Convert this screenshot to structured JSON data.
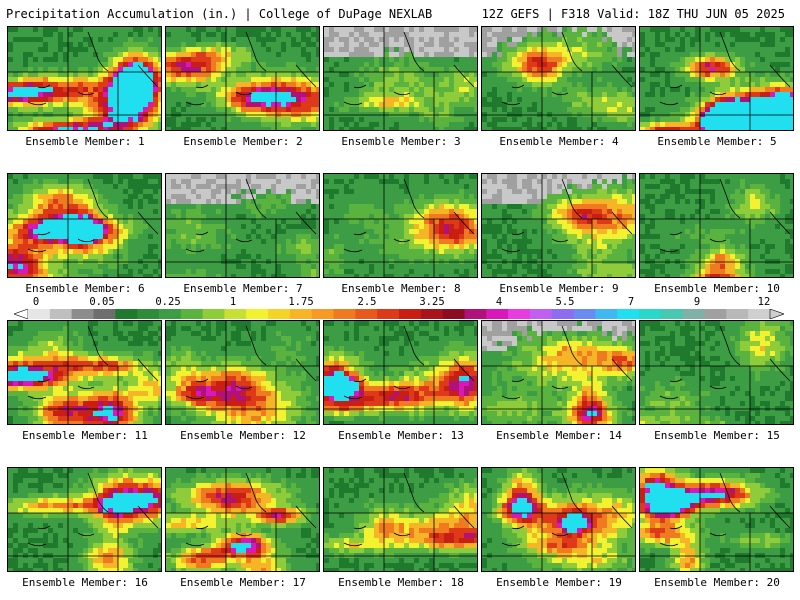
{
  "header": {
    "title": "Precipitation Accumulation (in.) | College of DuPage NEXLAB",
    "run_info": "12Z GEFS | F318 Valid: 18Z THU JUN 05 2025"
  },
  "members": [
    {
      "label": "Ensemble Member: 1",
      "intensity": 0.85
    },
    {
      "label": "Ensemble Member: 2",
      "intensity": 0.7
    },
    {
      "label": "Ensemble Member: 3",
      "intensity": 0.3
    },
    {
      "label": "Ensemble Member: 4",
      "intensity": 0.4
    },
    {
      "label": "Ensemble Member: 5",
      "intensity": 0.9
    },
    {
      "label": "Ensemble Member: 6",
      "intensity": 0.65
    },
    {
      "label": "Ensemble Member: 7",
      "intensity": 0.25
    },
    {
      "label": "Ensemble Member: 8",
      "intensity": 0.4
    },
    {
      "label": "Ensemble Member: 9",
      "intensity": 0.45
    },
    {
      "label": "Ensemble Member: 10",
      "intensity": 0.45
    },
    {
      "label": "Ensemble Member: 11",
      "intensity": 0.7
    },
    {
      "label": "Ensemble Member: 12",
      "intensity": 0.35
    },
    {
      "label": "Ensemble Member: 13",
      "intensity": 0.75
    },
    {
      "label": "Ensemble Member: 14",
      "intensity": 0.5
    },
    {
      "label": "Ensemble Member: 15",
      "intensity": 0.4
    },
    {
      "label": "Ensemble Member: 16",
      "intensity": 0.55
    },
    {
      "label": "Ensemble Member: 17",
      "intensity": 0.75
    },
    {
      "label": "Ensemble Member: 18",
      "intensity": 0.35
    },
    {
      "label": "Ensemble Member: 19",
      "intensity": 0.55
    },
    {
      "label": "Ensemble Member: 20",
      "intensity": 0.85
    }
  ],
  "colorbar": {
    "labels": [
      "0",
      "0.05",
      "0.25",
      "1",
      "1.75",
      "2.5",
      "3.25",
      "4",
      "5.5",
      "7",
      "9",
      "12"
    ],
    "colors": [
      "#e6e6e6",
      "#bfbfbf",
      "#8c8c8c",
      "#6e6e6e",
      "#1f7a2e",
      "#2e8b3a",
      "#3c9d44",
      "#5ab33f",
      "#8fcc3a",
      "#c8e036",
      "#f2f230",
      "#f5d42a",
      "#f5b526",
      "#f59a24",
      "#f07a20",
      "#e85a1c",
      "#dc3a18",
      "#c81e14",
      "#a8141a",
      "#8c0c22",
      "#b0127a",
      "#d818b8",
      "#e83ce0",
      "#c060f0",
      "#8c6cf0",
      "#6a8cf0",
      "#40b8f0",
      "#20e0f0",
      "#28d8c8",
      "#48c8b0",
      "#80b0a8",
      "#a0a0a0",
      "#b8b8b8",
      "#cfcfcf"
    ]
  }
}
